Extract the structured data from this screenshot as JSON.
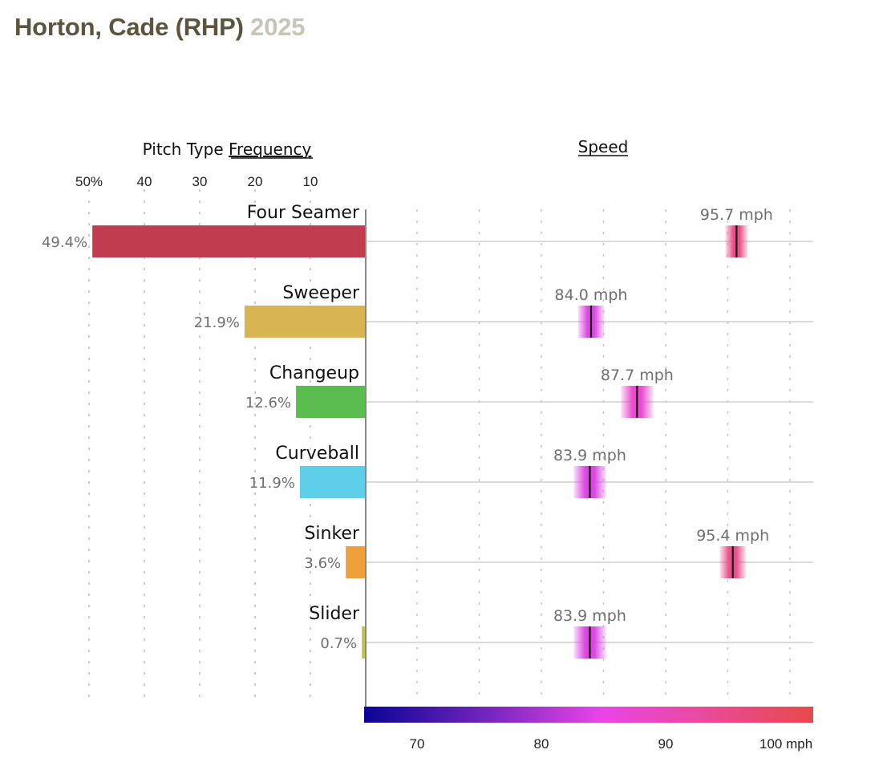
{
  "header": {
    "player": "Horton, Cade (RHP)",
    "season": "2025"
  },
  "chart_data": {
    "type": "bar",
    "title": "Horton, Cade (RHP) 2025",
    "panels": {
      "frequency": {
        "heading_prefix": "Pitch Type ",
        "heading_link": "Frequency",
        "xlim": [
          0,
          50
        ],
        "ticks": [
          {
            "value": 50,
            "label": "50%"
          },
          {
            "value": 40,
            "label": "40"
          },
          {
            "value": 30,
            "label": "30"
          },
          {
            "value": 20,
            "label": "20"
          },
          {
            "value": 10,
            "label": "10"
          }
        ],
        "direction": "right-to-left"
      },
      "speed": {
        "heading_link": "Speed",
        "xlim": [
          66,
          102
        ],
        "grid": [
          70,
          75,
          80,
          85,
          90,
          95,
          100
        ],
        "ticks": [
          {
            "value": 70,
            "label": "70"
          },
          {
            "value": 80,
            "label": "80"
          },
          {
            "value": 90,
            "label": "90"
          },
          {
            "value": 100,
            "label": "100 mph"
          }
        ],
        "colorscale": [
          {
            "value": 66,
            "color": "#0a0596"
          },
          {
            "value": 75,
            "color": "#6a22b8"
          },
          {
            "value": 85,
            "color": "#e845e6"
          },
          {
            "value": 93,
            "color": "#e84a9e"
          },
          {
            "value": 102,
            "color": "#e84a4a"
          }
        ]
      }
    },
    "categories": [
      "Four Seamer",
      "Sweeper",
      "Changeup",
      "Curveball",
      "Sinker",
      "Slider"
    ],
    "series": [
      {
        "name": "Frequency (%)",
        "values": [
          49.4,
          21.9,
          12.6,
          11.9,
          3.6,
          0.7
        ],
        "labels": [
          "49.4%",
          "21.9%",
          "12.6%",
          "11.9%",
          "3.6%",
          "0.7%"
        ],
        "colors": [
          "#c13c4f",
          "#d8b452",
          "#5bbc50",
          "#5ecfe8",
          "#eea03a",
          "#c6c24a"
        ]
      },
      {
        "name": "Average Speed (mph)",
        "values": [
          95.7,
          84.0,
          87.7,
          83.9,
          95.4,
          83.9
        ],
        "labels": [
          "95.7 mph",
          "84.0 mph",
          "87.7 mph",
          "83.9 mph",
          "95.4 mph",
          "83.9 mph"
        ],
        "spread_mph": [
          1.8,
          2.1,
          2.6,
          2.6,
          2.1,
          2.6
        ]
      }
    ]
  }
}
